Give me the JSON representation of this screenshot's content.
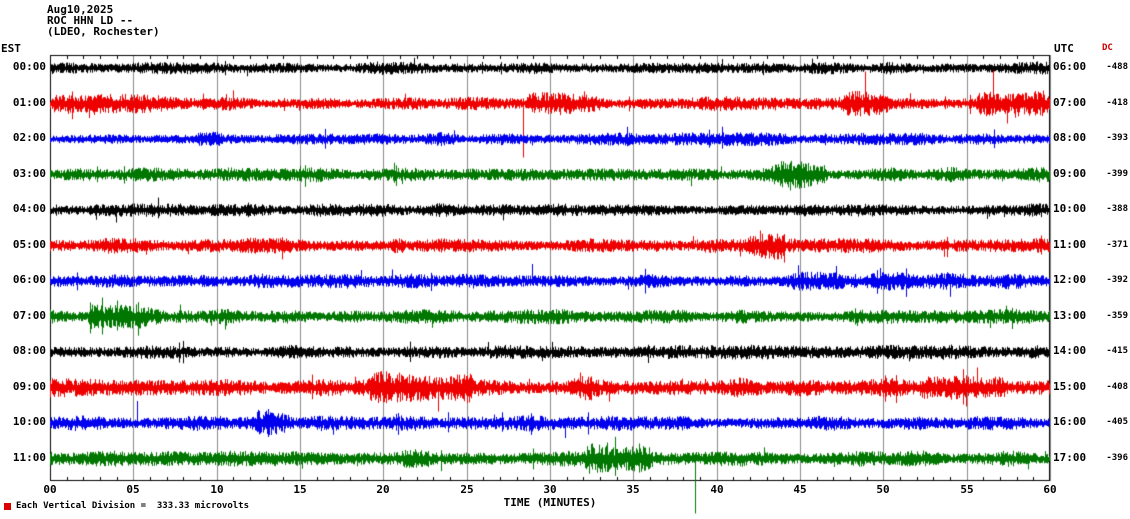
{
  "header": {
    "date": "Aug10,2025",
    "station_line": "ROC HHN LD --",
    "location": "(LDEO, Rochester)"
  },
  "axes": {
    "left_label": "EST",
    "right_label": "UTC",
    "dc_label": "DC",
    "x_title": "TIME (MINUTES)",
    "x_ticks": [
      "00",
      "05",
      "10",
      "15",
      "20",
      "25",
      "30",
      "35",
      "40",
      "45",
      "50",
      "55",
      "60"
    ],
    "x_tick_interval_minutes": 5
  },
  "footer": {
    "scale_note": "Each Vertical Division =  333.33 microvolts"
  },
  "colors": {
    "background": "#ffffff",
    "grid": "#8a8a8a",
    "border": "#000000",
    "dc_label": "#cc0000",
    "scale_marker": "#dd0000"
  },
  "chart_data": {
    "type": "line",
    "title": "ROC HHN LD -- helicorder, Aug10,2025 (LDEO, Rochester)",
    "x_range_minutes": [
      0,
      60
    ],
    "rows_are": "one hour of continuous seismic background noise per line; events/spikes mark visible bursts and excursions (minutes along x, pixel excursion up/down)",
    "rows": [
      {
        "est": "00:00",
        "utc": "06:00",
        "dc": "-488",
        "color": "#000000",
        "base_amp": 4.5,
        "events": [],
        "spikes": [
          {
            "minute": 40.3,
            "up": 9,
            "down": 4
          }
        ]
      },
      {
        "est": "01:00",
        "utc": "07:00",
        "dc": "-418",
        "color": "#ee0000",
        "base_amp": 5,
        "events": [
          {
            "start": 0,
            "end": 8.5,
            "gain": 1.7,
            "decay": true
          },
          {
            "start": 28.5,
            "end": 33.5,
            "gain": 2.4,
            "decay": true
          },
          {
            "start": 47.5,
            "end": 50.5,
            "gain": 1.8
          },
          {
            "start": 55.5,
            "end": 60,
            "gain": 2.2
          }
        ],
        "spikes": [
          {
            "minute": 28.35,
            "up": 5,
            "down": 54
          },
          {
            "minute": 48.9,
            "up": 32,
            "down": 5
          },
          {
            "minute": 56.6,
            "up": 33,
            "down": 6
          },
          {
            "minute": 57.4,
            "up": 5,
            "down": 20
          }
        ]
      },
      {
        "est": "02:00",
        "utc": "08:00",
        "dc": "-393",
        "color": "#0000ee",
        "base_amp": 4.5,
        "events": [
          {
            "start": 8.6,
            "end": 10.4,
            "gain": 1.7
          }
        ],
        "spikes": []
      },
      {
        "est": "03:00",
        "utc": "09:00",
        "dc": "-399",
        "color": "#007700",
        "base_amp": 5,
        "events": [
          {
            "start": 43.2,
            "end": 46.8,
            "gain": 2.1
          }
        ],
        "spikes": [
          {
            "minute": 44.4,
            "up": 4,
            "down": 16
          }
        ]
      },
      {
        "est": "04:00",
        "utc": "10:00",
        "dc": "-388",
        "color": "#000000",
        "base_amp": 4.5,
        "events": [],
        "spikes": []
      },
      {
        "est": "05:00",
        "utc": "11:00",
        "dc": "-371",
        "color": "#ee0000",
        "base_amp": 5.5,
        "events": [
          {
            "start": 20.2,
            "end": 21.4,
            "gain": 1.5
          },
          {
            "start": 41.8,
            "end": 44.2,
            "gain": 1.8
          }
        ],
        "spikes": [
          {
            "minute": 42.6,
            "up": 15,
            "down": 5
          }
        ]
      },
      {
        "est": "06:00",
        "utc": "12:00",
        "dc": "-392",
        "color": "#0000ee",
        "base_amp": 5,
        "events": [
          {
            "start": 44,
            "end": 60,
            "gain": 1.25
          }
        ],
        "spikes": [
          {
            "minute": 28.9,
            "up": 17,
            "down": 4
          },
          {
            "minute": 49.8,
            "up": 13,
            "down": 4
          }
        ]
      },
      {
        "est": "07:00",
        "utc": "13:00",
        "dc": "-359",
        "color": "#007700",
        "base_amp": 5,
        "events": [
          {
            "start": 2.2,
            "end": 7.2,
            "gain": 2.6,
            "decay": true
          },
          {
            "start": 7.2,
            "end": 11,
            "gain": 1.35
          }
        ],
        "spikes": [
          {
            "minute": 3.1,
            "up": 19,
            "down": 18
          },
          {
            "minute": 4,
            "up": 16,
            "down": 14
          }
        ]
      },
      {
        "est": "08:00",
        "utc": "14:00",
        "dc": "-415",
        "color": "#000000",
        "base_amp": 5,
        "events": [],
        "spikes": []
      },
      {
        "est": "09:00",
        "utc": "15:00",
        "dc": "-408",
        "color": "#ee0000",
        "base_amp": 6.5,
        "events": [
          {
            "start": 19,
            "end": 25.5,
            "gain": 1.7
          },
          {
            "start": 31,
            "end": 33,
            "gain": 1.5
          },
          {
            "start": 52,
            "end": 57.5,
            "gain": 1.8
          }
        ],
        "spikes": [
          {
            "minute": 23.3,
            "up": 7,
            "down": 24
          },
          {
            "minute": 31.8,
            "up": 15,
            "down": 5
          },
          {
            "minute": 55.6,
            "up": 20,
            "down": 7
          }
        ]
      },
      {
        "est": "10:00",
        "utc": "16:00",
        "dc": "-405",
        "color": "#0000ee",
        "base_amp": 5.5,
        "events": [
          {
            "start": 12,
            "end": 14.6,
            "gain": 1.8
          }
        ],
        "spikes": [
          {
            "minute": 5.2,
            "up": 22,
            "down": 5
          },
          {
            "minute": 13.1,
            "up": 14,
            "down": 14
          },
          {
            "minute": 30.9,
            "up": 4,
            "down": 15
          }
        ]
      },
      {
        "est": "11:00",
        "utc": "17:00",
        "dc": "-396",
        "color": "#007700",
        "base_amp": 5.5,
        "events": [
          {
            "start": 20.8,
            "end": 23,
            "gain": 1.4
          },
          {
            "start": 32,
            "end": 36.2,
            "gain": 1.9
          }
        ],
        "spikes": [
          {
            "minute": 33.4,
            "up": 16,
            "down": 9
          },
          {
            "minute": 38.7,
            "up": 3,
            "down": 55
          }
        ]
      }
    ]
  }
}
